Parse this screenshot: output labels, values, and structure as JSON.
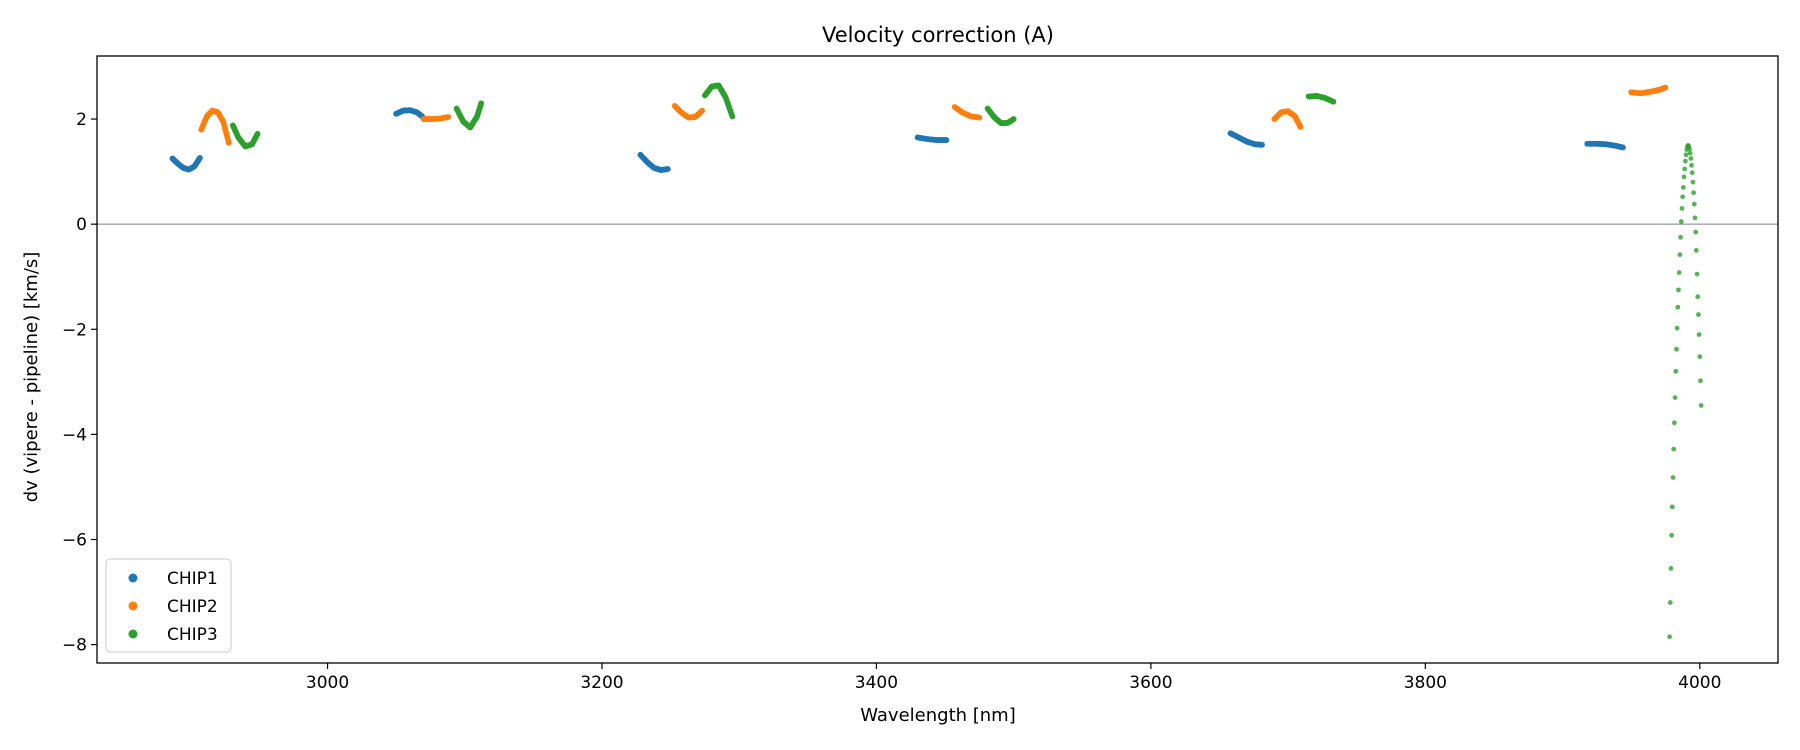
{
  "chart_data": {
    "type": "scatter",
    "title": "Velocity correction (A)",
    "xlabel": "Wavelength [nm]",
    "ylabel": "dv (vipere - pipeline) [km/s]",
    "xlim": [
      2832,
      4057
    ],
    "ylim": [
      -8.35,
      3.2
    ],
    "xticks": [
      3000,
      3200,
      3400,
      3600,
      3800,
      4000
    ],
    "yticks": [
      -8,
      -6,
      -4,
      -2,
      0,
      2
    ],
    "hline": 0,
    "grid": false,
    "legend": {
      "position": "lower-left",
      "entries": [
        "CHIP1",
        "CHIP2",
        "CHIP3"
      ]
    },
    "colors": {
      "CHIP1": "#1f77b4",
      "CHIP2": "#ff7f0e",
      "CHIP3": "#2ca02c"
    },
    "series": [
      {
        "name": "CHIP1",
        "segments": [
          [
            [
              2887,
              1.25
            ],
            [
              2891,
              1.15
            ],
            [
              2895,
              1.07
            ],
            [
              2899,
              1.04
            ],
            [
              2903,
              1.1
            ],
            [
              2907,
              1.26
            ]
          ],
          [
            [
              3050,
              2.1
            ],
            [
              3055,
              2.16
            ],
            [
              3060,
              2.17
            ],
            [
              3065,
              2.13
            ],
            [
              3069,
              2.05
            ]
          ],
          [
            [
              3228,
              1.32
            ],
            [
              3233,
              1.18
            ],
            [
              3238,
              1.07
            ],
            [
              3243,
              1.03
            ],
            [
              3248,
              1.05
            ]
          ],
          [
            [
              3430,
              1.65
            ],
            [
              3437,
              1.62
            ],
            [
              3444,
              1.6
            ],
            [
              3451,
              1.6
            ]
          ],
          [
            [
              3658,
              1.73
            ],
            [
              3664,
              1.65
            ],
            [
              3670,
              1.57
            ],
            [
              3676,
              1.52
            ],
            [
              3681,
              1.51
            ]
          ],
          [
            [
              3918,
              1.53
            ],
            [
              3925,
              1.53
            ],
            [
              3932,
              1.52
            ],
            [
              3939,
              1.49
            ],
            [
              3944,
              1.46
            ]
          ]
        ]
      },
      {
        "name": "CHIP2",
        "segments": [
          [
            [
              2908,
              1.8
            ],
            [
              2912,
              2.05
            ],
            [
              2916,
              2.16
            ],
            [
              2920,
              2.13
            ],
            [
              2924,
              1.95
            ],
            [
              2928,
              1.55
            ]
          ],
          [
            [
              3070,
              2.0
            ],
            [
              3076,
              2.0
            ],
            [
              3082,
              2.01
            ],
            [
              3088,
              2.04
            ]
          ],
          [
            [
              3253,
              2.25
            ],
            [
              3258,
              2.12
            ],
            [
              3263,
              2.03
            ],
            [
              3268,
              2.04
            ],
            [
              3273,
              2.16
            ]
          ],
          [
            [
              3457,
              2.23
            ],
            [
              3463,
              2.12
            ],
            [
              3469,
              2.05
            ],
            [
              3475,
              2.03
            ]
          ],
          [
            [
              3690,
              2.0
            ],
            [
              3695,
              2.13
            ],
            [
              3700,
              2.15
            ],
            [
              3705,
              2.05
            ],
            [
              3709,
              1.85
            ]
          ],
          [
            [
              3950,
              2.51
            ],
            [
              3957,
              2.49
            ],
            [
              3964,
              2.52
            ],
            [
              3971,
              2.56
            ],
            [
              3975,
              2.6
            ]
          ]
        ]
      },
      {
        "name": "CHIP3",
        "segments": [
          [
            [
              2931,
              1.88
            ],
            [
              2935,
              1.65
            ],
            [
              2940,
              1.48
            ],
            [
              2945,
              1.52
            ],
            [
              2949,
              1.72
            ]
          ],
          [
            [
              3094,
              2.2
            ],
            [
              3099,
              1.95
            ],
            [
              3104,
              1.84
            ],
            [
              3109,
              2.05
            ],
            [
              3112,
              2.3
            ]
          ],
          [
            [
              3275,
              2.45
            ],
            [
              3280,
              2.62
            ],
            [
              3285,
              2.64
            ],
            [
              3290,
              2.42
            ],
            [
              3295,
              2.05
            ]
          ],
          [
            [
              3481,
              2.2
            ],
            [
              3486,
              2.03
            ],
            [
              3491,
              1.92
            ],
            [
              3496,
              1.93
            ],
            [
              3500,
              2.0
            ]
          ],
          [
            [
              3715,
              2.43
            ],
            [
              3721,
              2.44
            ],
            [
              3727,
              2.4
            ],
            [
              3733,
              2.33
            ]
          ]
        ]
      },
      {
        "name": "CHIP3",
        "style": "sparse",
        "points": [
          [
            3978,
            -7.85
          ],
          [
            3978.5,
            -7.2
          ],
          [
            3979,
            -6.55
          ],
          [
            3979.5,
            -5.92
          ],
          [
            3980,
            -5.38
          ],
          [
            3980.5,
            -4.82
          ],
          [
            3981,
            -4.28
          ],
          [
            3981.5,
            -3.78
          ],
          [
            3982,
            -3.3
          ],
          [
            3982.5,
            -2.8
          ],
          [
            3983,
            -2.38
          ],
          [
            3983.5,
            -1.98
          ],
          [
            3984,
            -1.58
          ],
          [
            3984.5,
            -1.25
          ],
          [
            3985,
            -0.92
          ],
          [
            3985.5,
            -0.58
          ],
          [
            3986,
            -0.25
          ],
          [
            3986.5,
            0.05
          ],
          [
            3987,
            0.3
          ],
          [
            3987.5,
            0.52
          ],
          [
            3988,
            0.7
          ],
          [
            3988.5,
            0.9
          ],
          [
            3989,
            1.05
          ],
          [
            3989.5,
            1.2
          ],
          [
            3990,
            1.32
          ],
          [
            3990.5,
            1.42
          ],
          [
            3991,
            1.48
          ],
          [
            3991.5,
            1.5
          ],
          [
            3992,
            1.48
          ],
          [
            3992.5,
            1.43
          ],
          [
            3993,
            1.35
          ],
          [
            3993.5,
            1.25
          ],
          [
            3994,
            1.12
          ],
          [
            3994.5,
            0.98
          ],
          [
            3995,
            0.8
          ],
          [
            3995.5,
            0.6
          ],
          [
            3996,
            0.38
          ],
          [
            3996.5,
            0.12
          ],
          [
            3997,
            -0.15
          ],
          [
            3997.5,
            -0.5
          ],
          [
            3998,
            -0.95
          ],
          [
            3998.5,
            -1.38
          ],
          [
            3999,
            -1.72
          ],
          [
            3999.5,
            -2.1
          ],
          [
            4000,
            -2.52
          ],
          [
            4000.5,
            -2.98
          ],
          [
            4001,
            -3.45
          ]
        ]
      }
    ]
  }
}
